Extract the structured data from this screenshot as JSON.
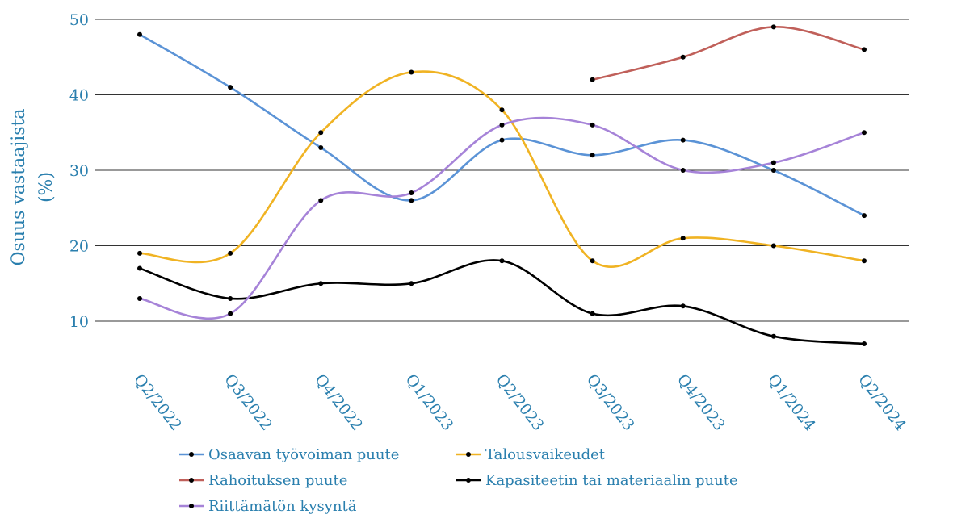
{
  "chart_data": {
    "type": "line",
    "title": "",
    "xlabel": "",
    "ylabel": "Osuus vastaajista (%)",
    "ylabel_lines": [
      "Osuus vastaajista",
      "(%)"
    ],
    "ylim": [
      5,
      50
    ],
    "yticks": [
      10,
      20,
      30,
      40,
      50
    ],
    "grid": true,
    "legend_position": "bottom",
    "categories": [
      "Q2/2022",
      "Q3/2022",
      "Q4/2022",
      "Q1/2023",
      "Q2/2023",
      "Q3/2023",
      "Q4/2023",
      "Q1/2024",
      "Q2/2024"
    ],
    "series": [
      {
        "name": "Osaavan työvoiman puute",
        "color": "#5b93d6",
        "values": [
          48,
          41,
          33,
          26,
          34,
          32,
          34,
          30,
          24
        ]
      },
      {
        "name": "Talousvaikeudet",
        "color": "#f0b323",
        "values": [
          19,
          19,
          35,
          43,
          38,
          18,
          21,
          20,
          18
        ]
      },
      {
        "name": "Rahoituksen puute",
        "color": "#c0605a",
        "values": [
          null,
          null,
          null,
          null,
          null,
          42,
          45,
          49,
          46
        ]
      },
      {
        "name": "Kapasiteetin tai materiaalin puute",
        "color": "#000000",
        "values": [
          17,
          13,
          15,
          15,
          18,
          11,
          12,
          8,
          7
        ]
      },
      {
        "name": "Riittämätön kysyntä",
        "color": "#a683d8",
        "values": [
          13,
          11,
          26,
          27,
          36,
          36,
          30,
          31,
          35
        ]
      }
    ]
  }
}
